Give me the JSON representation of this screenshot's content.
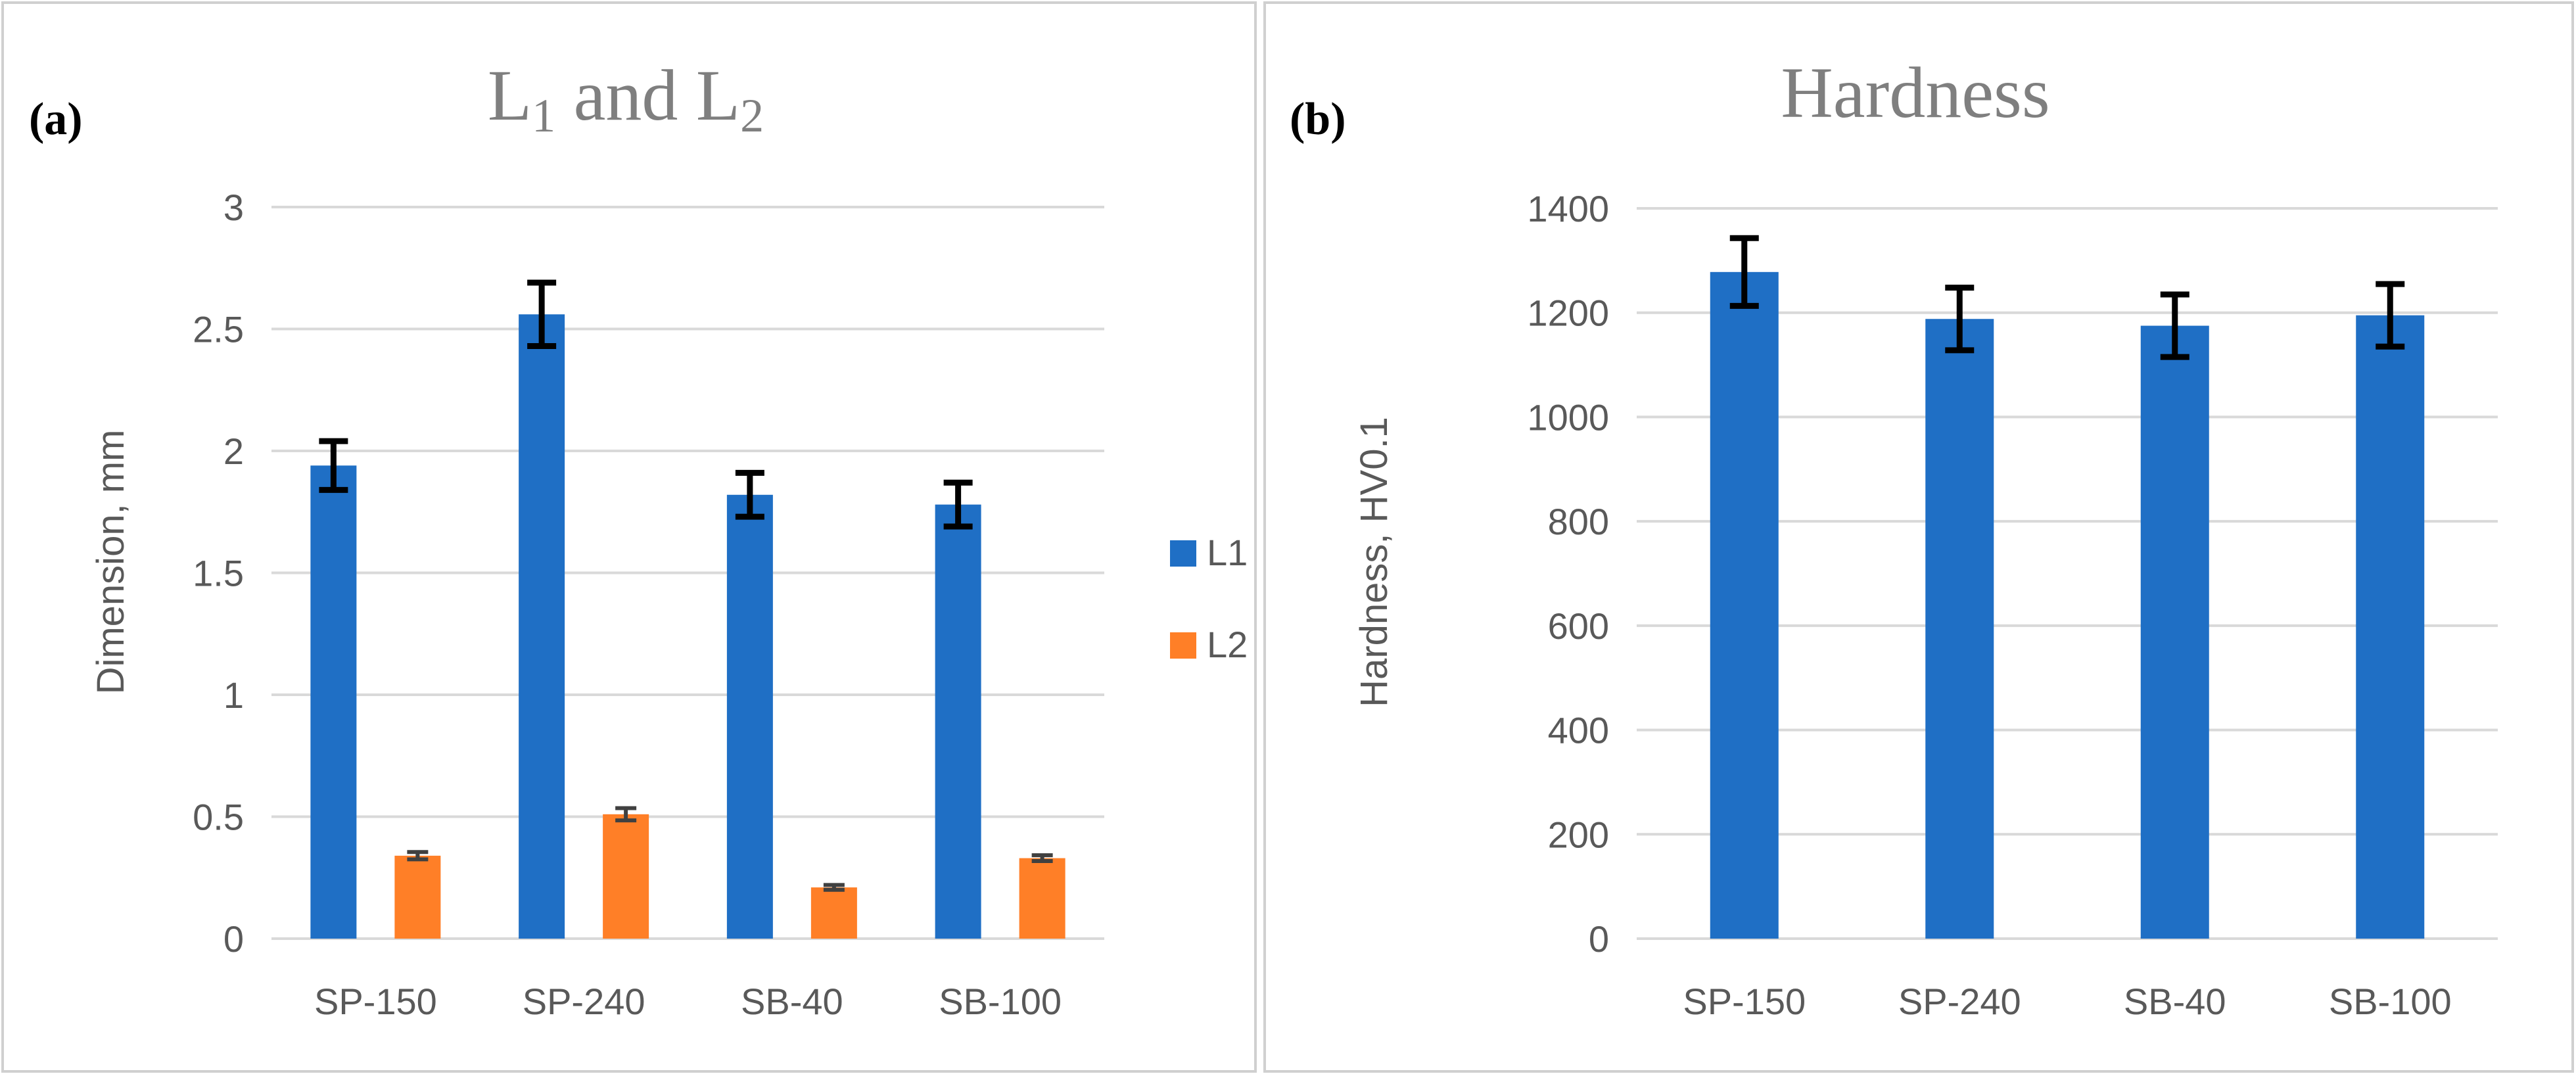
{
  "chart_data": [
    {
      "type": "bar",
      "panel_label": "(a)",
      "title": "L1 and L2",
      "title_parts": {
        "base1": "L",
        "sub1": "1",
        "mid": " and ",
        "base2": "L",
        "sub2": "2"
      },
      "xlabel": "",
      "ylabel": "Dimension, mm",
      "ylim": [
        0,
        3
      ],
      "yticks": [
        "0",
        "0.5",
        "1",
        "1.5",
        "2",
        "2.5",
        "3"
      ],
      "ytick_values": [
        0,
        0.5,
        1,
        1.5,
        2,
        2.5,
        3
      ],
      "categories": [
        "SP-150",
        "SP-240",
        "SB-40",
        "SB-100"
      ],
      "series": [
        {
          "name": "L1",
          "color": "#1f6fc5",
          "values": [
            1.94,
            2.56,
            1.82,
            1.78
          ],
          "errors": [
            0.1,
            0.13,
            0.09,
            0.09
          ]
        },
        {
          "name": "L2",
          "color": "#ff7f27",
          "values": [
            0.34,
            0.51,
            0.21,
            0.33
          ],
          "errors": [
            0.015,
            0.025,
            0.01,
            0.012
          ]
        }
      ],
      "legend": [
        "L1",
        "L2"
      ],
      "legend_position": "right",
      "grid": true
    },
    {
      "type": "bar",
      "panel_label": "(b)",
      "title": "Hardness",
      "xlabel": "",
      "ylabel": "Hardness, HV0.1",
      "ylim": [
        0,
        1400
      ],
      "yticks": [
        "0",
        "200",
        "400",
        "600",
        "800",
        "1000",
        "1200",
        "1400"
      ],
      "ytick_values": [
        0,
        200,
        400,
        600,
        800,
        1000,
        1200,
        1400
      ],
      "categories": [
        "SP-150",
        "SP-240",
        "SB-40",
        "SB-100"
      ],
      "series": [
        {
          "name": "Hardness",
          "color": "#1f6fc5",
          "values": [
            1278,
            1188,
            1175,
            1195
          ],
          "errors": [
            65,
            60,
            60,
            60
          ]
        }
      ],
      "grid": true
    }
  ]
}
